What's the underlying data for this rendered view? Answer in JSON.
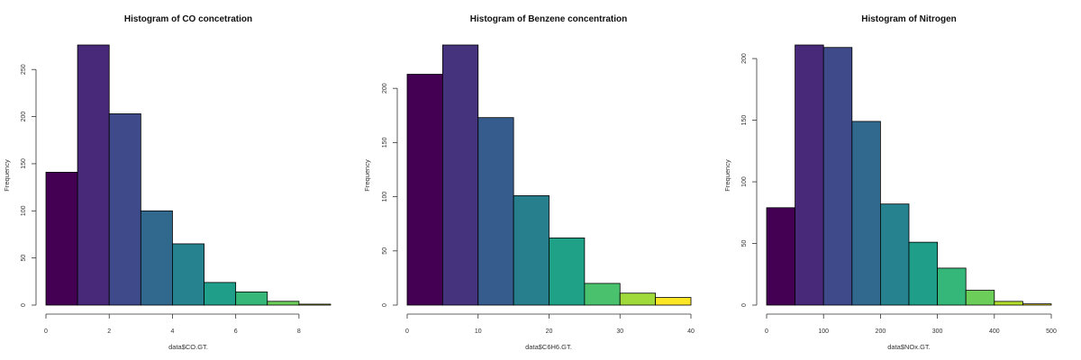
{
  "chart_data": [
    {
      "type": "bar",
      "title": "Histogram of CO concetration",
      "xlabel": "data$CO.GT.",
      "ylabel": "Frequency",
      "breaks": [
        0,
        1,
        2,
        3,
        4,
        5,
        6,
        7,
        8,
        9
      ],
      "values": [
        141,
        276,
        203,
        100,
        65,
        24,
        14,
        4,
        1
      ],
      "xlim": [
        0,
        9
      ],
      "ylim": [
        0,
        276
      ],
      "xticks": [
        0,
        2,
        4,
        6,
        8
      ],
      "yticks": [
        0,
        50,
        100,
        150,
        200,
        250
      ],
      "colors": [
        "#440154",
        "#482878",
        "#3E4A89",
        "#31688E",
        "#26828E",
        "#1F9E89",
        "#35B779",
        "#6DCD59",
        "#B4DE2C"
      ]
    },
    {
      "type": "bar",
      "title": "Histogram of Benzene concentration",
      "xlabel": "data$C6H6.GT.",
      "ylabel": "Frequency",
      "breaks": [
        0,
        5,
        10,
        15,
        20,
        25,
        30,
        35,
        40
      ],
      "values": [
        213,
        240,
        173,
        101,
        62,
        20,
        11,
        7
      ],
      "xlim": [
        0,
        40
      ],
      "ylim": [
        0,
        240
      ],
      "xticks": [
        0,
        10,
        20,
        30,
        40
      ],
      "yticks": [
        0,
        50,
        100,
        150,
        200
      ],
      "colors": [
        "#440154",
        "#46337E",
        "#365C8D",
        "#277F8E",
        "#1FA187",
        "#4AC16D",
        "#9FDA3A",
        "#FDE725"
      ]
    },
    {
      "type": "bar",
      "title": "Histogram of Nitrogen",
      "xlabel": "data$NOx.GT.",
      "ylabel": "Frequency",
      "breaks": [
        0,
        50,
        100,
        150,
        200,
        250,
        300,
        350,
        400,
        450,
        500
      ],
      "values": [
        79,
        211,
        209,
        149,
        82,
        51,
        30,
        12,
        3,
        1
      ],
      "xlim": [
        0,
        500
      ],
      "ylim": [
        0,
        211
      ],
      "xticks": [
        0,
        100,
        200,
        300,
        400,
        500
      ],
      "yticks": [
        0,
        50,
        100,
        150,
        200
      ],
      "colors": [
        "#440154",
        "#482878",
        "#3E4A89",
        "#31688E",
        "#26828E",
        "#1F9E89",
        "#35B779",
        "#6DCD59",
        "#B4DE2C",
        "#FDE725"
      ]
    }
  ]
}
